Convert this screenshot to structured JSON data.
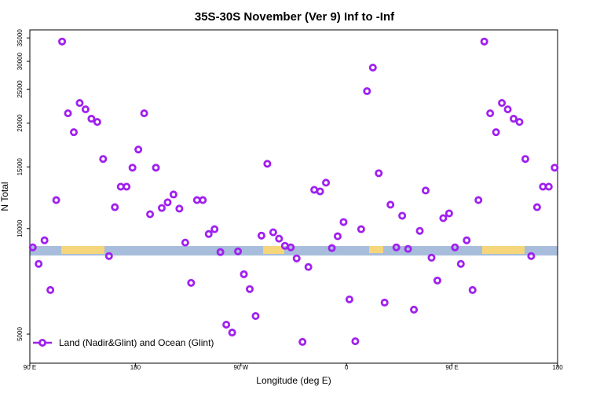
{
  "chart_data": {
    "type": "scatter",
    "title": "35S-30S November (Ver 9)   Inf to -Inf",
    "xlabel": "Longitude (deg E)",
    "ylabel": "N Total",
    "log_y": true,
    "xlim": [
      90,
      540
    ],
    "xticks": [
      {
        "value": 90,
        "label": "90 E"
      },
      {
        "value": 180,
        "label": "180"
      },
      {
        "value": 270,
        "label": "90 W"
      },
      {
        "value": 360,
        "label": "0"
      },
      {
        "value": 450,
        "label": "90 E"
      },
      {
        "value": 540,
        "label": "180"
      }
    ],
    "ylim": [
      4130,
      36900
    ],
    "yticks": [
      5000,
      10000,
      15000,
      20000,
      25000,
      30000,
      35000
    ],
    "legend": "bottom-left",
    "series": [
      {
        "name": "Land (Nadir&Glint) and Ocean (Glint)",
        "color": "#a020f0",
        "x": [
          92.5,
          97.5,
          102.5,
          107.5,
          112.5,
          117.5,
          122.5,
          127.5,
          132.5,
          137.5,
          142.5,
          147.5,
          152.5,
          157.5,
          162.5,
          167.5,
          172.5,
          177.5,
          182.5,
          187.5,
          192.5,
          197.5,
          202.5,
          207.5,
          212.5,
          217.5,
          222.5,
          227.5,
          232.5,
          237.5,
          242.5,
          247.5,
          252.5,
          257.5,
          262.5,
          267.5,
          272.5,
          277.5,
          282.5,
          287.5,
          292.5,
          297.5,
          302.5,
          307.5,
          312.5,
          317.5,
          322.5,
          327.5,
          332.5,
          337.5,
          342.5,
          347.5,
          352.5,
          357.5,
          362.5,
          367.5,
          372.5,
          377.5,
          382.5,
          387.5,
          392.5,
          397.5,
          402.5,
          407.5,
          412.5,
          417.5,
          422.5,
          427.5,
          432.5,
          437.5,
          442.5,
          447.5,
          452.5,
          457.5,
          462.5,
          467.5,
          472.5,
          477.5,
          482.5,
          487.5,
          492.5,
          497.5,
          502.5,
          507.5,
          512.5,
          517.5,
          522.5,
          527.5,
          532.5,
          537.5
        ],
        "values": [
          8840,
          7930,
          9260,
          6680,
          12060,
          34180,
          21330,
          18840,
          22820,
          21890,
          20580,
          20150,
          15800,
          8350,
          11510,
          13170,
          13170,
          14920,
          16810,
          21330,
          10990,
          14920,
          11450,
          11880,
          12510,
          11400,
          9120,
          7000,
          12060,
          12060,
          9650,
          9960,
          8570,
          5320,
          5050,
          8610,
          7410,
          6720,
          5630,
          9550,
          15310,
          9760,
          9360,
          8930,
          8840,
          8220,
          4750,
          7770,
          12900,
          12770,
          13520,
          8800,
          9510,
          10440,
          6280,
          4770,
          9960,
          24670,
          28800,
          14390,
          6150,
          11700,
          8840,
          10880,
          8750,
          5870,
          9850,
          12840,
          8260,
          7110,
          10710,
          11050,
          8840,
          7930,
          9260,
          6680,
          12060,
          34180,
          21330,
          18840,
          22820,
          21890,
          20580,
          20150,
          15800,
          8350,
          11510,
          13170,
          13170,
          14920
        ]
      }
    ]
  }
}
